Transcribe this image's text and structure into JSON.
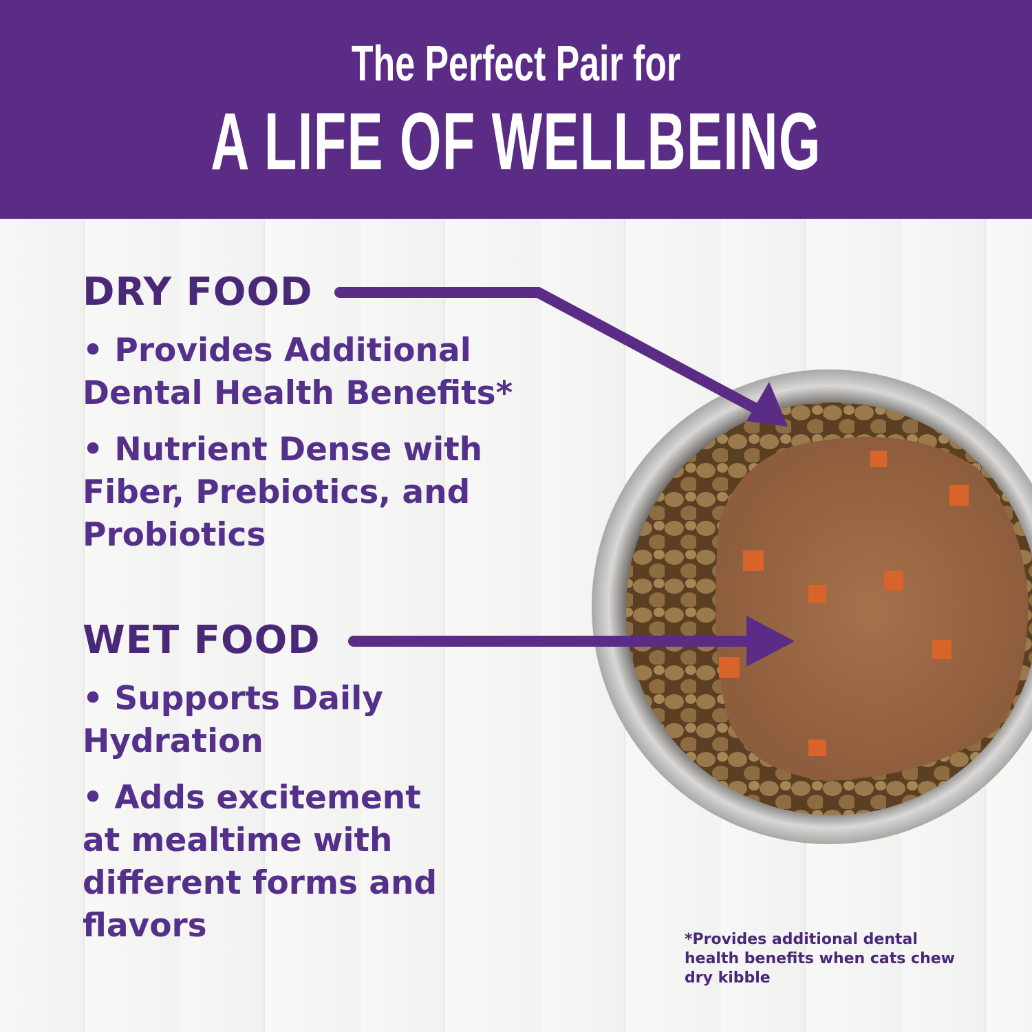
{
  "banner": {
    "line1": "The Perfect Pair for",
    "line2": "A LIFE OF WELLBEING"
  },
  "dry": {
    "heading": "DRY FOOD",
    "items": [
      "• Provides Additional Dental Health Benefits*",
      "• Nutrient Dense with Fiber, Prebiotics, and Probiotics"
    ]
  },
  "wet": {
    "heading": "WET FOOD",
    "items": [
      "• Supports Daily Hydration",
      "• Adds excitement at mealtime with different forms and flavors"
    ]
  },
  "footnote": "*Provides additional dental health benefits when cats chew dry kibble",
  "colors": {
    "banner": "#5a2c86",
    "text": "#4a2878",
    "arrow": "#5a2c86"
  }
}
